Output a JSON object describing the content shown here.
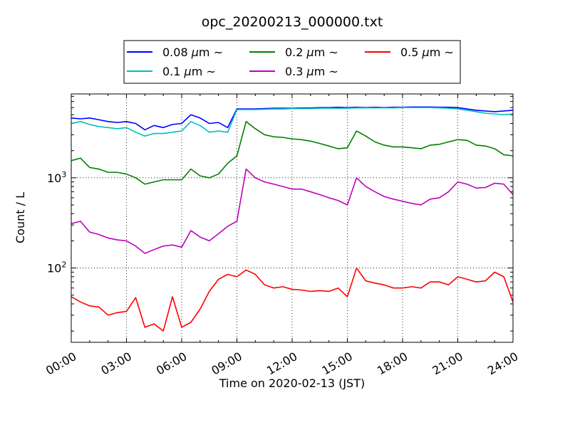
{
  "chart_data": {
    "type": "line",
    "title": "opc_20200213_000000.txt",
    "xlabel": "Time on 2020-02-13 (JST)",
    "ylabel": "Count / L",
    "y_scale": "log",
    "xlim": [
      0,
      24
    ],
    "ylim": [
      15,
      8500
    ],
    "grid": true,
    "legend_placement": "top-center",
    "x_ticks": [
      "00:00",
      "03:00",
      "06:00",
      "09:00",
      "12:00",
      "15:00",
      "18:00",
      "21:00",
      "24:00"
    ],
    "y_tick_labels": [
      {
        "value": 100,
        "base": "10",
        "exp": "2"
      },
      {
        "value": 1000,
        "base": "10",
        "exp": "3"
      }
    ],
    "x": [
      0,
      0.5,
      1,
      1.5,
      2,
      2.5,
      3,
      3.5,
      4,
      4.5,
      5,
      5.5,
      6,
      6.5,
      7,
      7.5,
      8,
      8.5,
      9,
      9.5,
      10,
      10.5,
      11,
      11.5,
      12,
      12.5,
      13,
      13.5,
      14,
      14.5,
      15,
      15.5,
      16,
      16.5,
      17,
      17.5,
      18,
      18.5,
      19,
      19.5,
      20,
      20.5,
      21,
      21.5,
      22,
      22.5,
      23,
      23.5,
      24
    ],
    "series": [
      {
        "name": "0.08 µm ~",
        "legend_size": "0.08 ",
        "legend_unit": "µm",
        "legend_suffix": "~",
        "color": "#0000ff",
        "values": [
          4600,
          4500,
          4600,
          4400,
          4200,
          4100,
          4200,
          4000,
          3400,
          3800,
          3600,
          3900,
          4000,
          5000,
          4600,
          4000,
          4100,
          3600,
          5800,
          5800,
          5800,
          5850,
          5900,
          5900,
          5900,
          5950,
          5950,
          6000,
          6000,
          6050,
          6000,
          6050,
          6000,
          6050,
          6000,
          6050,
          6050,
          6100,
          6100,
          6100,
          6050,
          6050,
          6000,
          5800,
          5600,
          5500,
          5400,
          5500,
          5600
        ]
      },
      {
        "name": "0.1 µm ~",
        "legend_size": "0.1 ",
        "legend_unit": "µm",
        "legend_suffix": "~",
        "color": "#00bfbf",
        "values": [
          4000,
          4200,
          3900,
          3700,
          3600,
          3500,
          3600,
          3200,
          2900,
          3100,
          3100,
          3200,
          3300,
          4200,
          3800,
          3200,
          3300,
          3200,
          5700,
          5700,
          5700,
          5750,
          5800,
          5800,
          5850,
          5850,
          5850,
          5900,
          5900,
          5900,
          5900,
          5950,
          5950,
          5950,
          5950,
          5950,
          6000,
          6000,
          6000,
          6000,
          5950,
          5900,
          5800,
          5600,
          5400,
          5200,
          5100,
          5000,
          5100
        ]
      },
      {
        "name": "0.2 µm ~",
        "legend_size": "0.2 ",
        "legend_unit": "µm",
        "legend_suffix": "~",
        "color": "#008000",
        "values": [
          1550,
          1650,
          1300,
          1250,
          1150,
          1150,
          1100,
          1000,
          850,
          900,
          950,
          950,
          950,
          1250,
          1050,
          1000,
          1100,
          1450,
          1750,
          4200,
          3500,
          3000,
          2850,
          2800,
          2700,
          2650,
          2550,
          2400,
          2250,
          2100,
          2150,
          3300,
          2900,
          2500,
          2300,
          2200,
          2200,
          2150,
          2100,
          2300,
          2350,
          2500,
          2650,
          2600,
          2300,
          2250,
          2100,
          1800,
          1750
        ]
      },
      {
        "name": "0.3 µm ~",
        "legend_size": "0.3 ",
        "legend_unit": "µm",
        "legend_suffix": "~",
        "color": "#bf00bf",
        "values": [
          310,
          330,
          250,
          235,
          215,
          205,
          200,
          175,
          145,
          160,
          175,
          180,
          170,
          260,
          220,
          200,
          240,
          290,
          330,
          1250,
          1000,
          900,
          850,
          800,
          750,
          750,
          700,
          650,
          600,
          560,
          500,
          1000,
          800,
          700,
          620,
          580,
          550,
          520,
          500,
          580,
          600,
          700,
          900,
          850,
          770,
          780,
          870,
          850,
          650
        ]
      },
      {
        "name": "0.5 µm ~",
        "legend_size": "0.5 ",
        "legend_unit": "µm",
        "legend_suffix": "~",
        "color": "#ff0000",
        "values": [
          48,
          42,
          38,
          37,
          30,
          32,
          33,
          47,
          22,
          24,
          20,
          48,
          22,
          25,
          35,
          55,
          75,
          85,
          80,
          95,
          85,
          65,
          60,
          62,
          58,
          57,
          55,
          56,
          55,
          60,
          48,
          100,
          72,
          68,
          65,
          60,
          60,
          62,
          60,
          70,
          70,
          65,
          80,
          75,
          70,
          72,
          90,
          80,
          42
        ]
      }
    ]
  }
}
